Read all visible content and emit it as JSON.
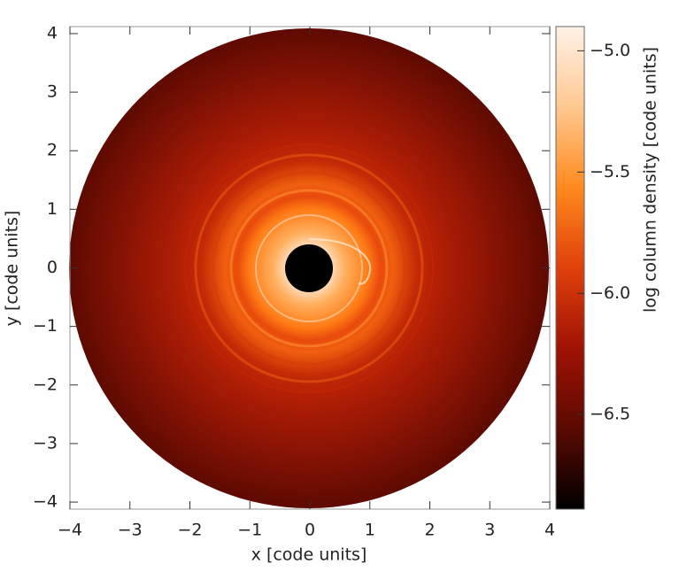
{
  "chart_data": {
    "type": "image",
    "xlabel": "x [code units]",
    "ylabel": "y [code units]",
    "colorbar_label": "log column density [code units]",
    "xlim": [
      -4,
      4
    ],
    "ylim": [
      -4.12,
      4.12
    ],
    "xticks": [
      {
        "value": -4,
        "label": "−4"
      },
      {
        "value": -3,
        "label": "−3"
      },
      {
        "value": -2,
        "label": "−2"
      },
      {
        "value": -1,
        "label": "−1"
      },
      0,
      1,
      2,
      3,
      4
    ],
    "yticks": [
      {
        "value": -4,
        "label": "−4"
      },
      {
        "value": -3,
        "label": "−3"
      },
      {
        "value": -2,
        "label": "−2"
      },
      {
        "value": -1,
        "label": "−1"
      },
      0,
      1,
      2,
      3,
      4
    ],
    "clim": [
      -6.89,
      -4.9
    ],
    "cticks": [
      {
        "value": -5.0,
        "label": "−5.0"
      },
      {
        "value": -5.5,
        "label": "−5.5"
      },
      {
        "value": -6.0,
        "label": "−6.0"
      },
      {
        "value": -6.5,
        "label": "−6.5"
      }
    ],
    "colormap": [
      "#000000",
      "#5a0a02",
      "#a01204",
      "#e0400a",
      "#ff8a1e",
      "#ffc890",
      "#fff2e8"
    ]
  }
}
